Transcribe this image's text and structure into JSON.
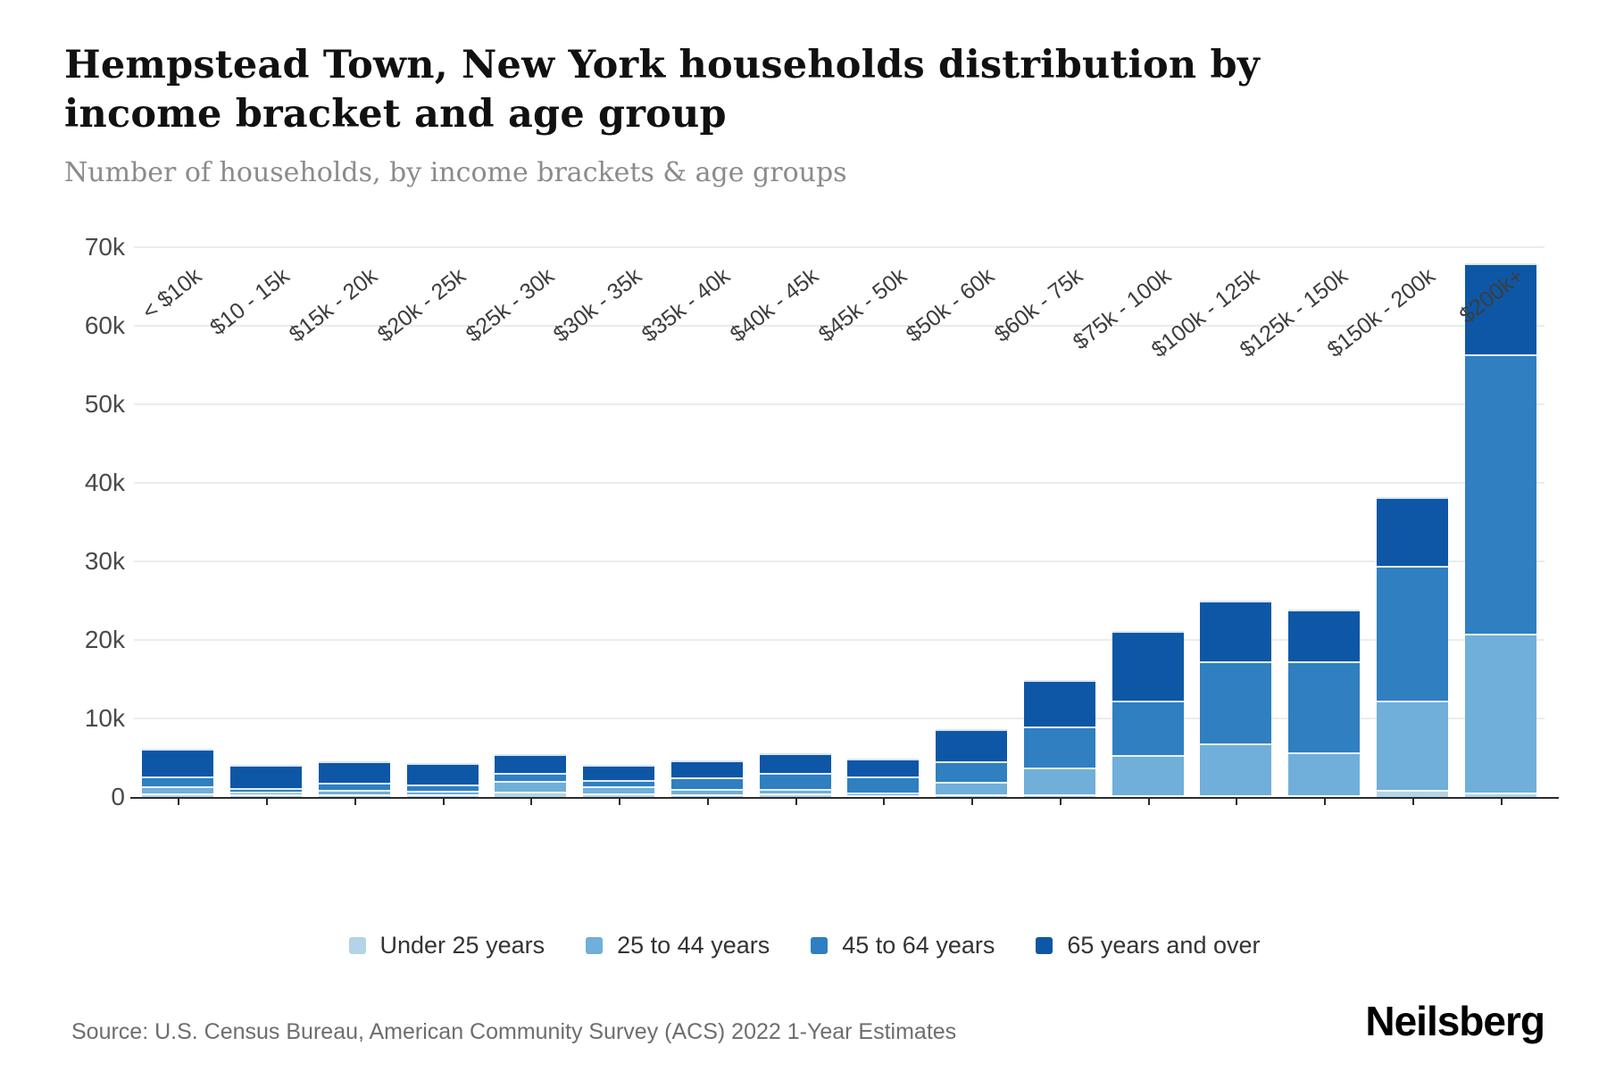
{
  "header": {
    "title": "Hempstead Town, New York households distribution by income bracket and age group",
    "subtitle": "Number of households, by income brackets & age groups"
  },
  "chart_data": {
    "type": "bar",
    "stacked": true,
    "title": "Hempstead Town, New York households distribution by income bracket and age group",
    "xlabel": "",
    "ylabel": "Number of households",
    "ylim": [
      0,
      70000
    ],
    "y_ticks": [
      {
        "value": 0,
        "label": "0"
      },
      {
        "value": 10000,
        "label": "10k"
      },
      {
        "value": 20000,
        "label": "20k"
      },
      {
        "value": 30000,
        "label": "30k"
      },
      {
        "value": 40000,
        "label": "40k"
      },
      {
        "value": 50000,
        "label": "50k"
      },
      {
        "value": 60000,
        "label": "60k"
      },
      {
        "value": 70000,
        "label": "70k"
      }
    ],
    "grid": "horizontal",
    "legend_position": "bottom",
    "categories": [
      "< $10k",
      "$10 - 15k",
      "$15k - 20k",
      "$20k - 25k",
      "$25k - 30k",
      "$30k - 35k",
      "$35k - 40k",
      "$40k - 45k",
      "$45k - 50k",
      "$50k - 60k",
      "$60k - 75k",
      "$75k - 100k",
      "$100k - 125k",
      "$125k - 150k",
      "$150k - 200k",
      "$200k+"
    ],
    "series": [
      {
        "name": "Under 25 years",
        "color": "#b3d3e8",
        "values": [
          450,
          300,
          350,
          350,
          700,
          450,
          350,
          500,
          250,
          300,
          400,
          250,
          200,
          250,
          900,
          600
        ]
      },
      {
        "name": "25 to 44 years",
        "color": "#6fafda",
        "values": [
          900,
          400,
          550,
          450,
          1350,
          900,
          650,
          550,
          350,
          1600,
          3400,
          5100,
          6600,
          5450,
          11400,
          20200
        ]
      },
      {
        "name": "45 to 64 years",
        "color": "#2f7fc1",
        "values": [
          1250,
          450,
          900,
          750,
          1000,
          800,
          1500,
          2000,
          2000,
          2600,
          5200,
          6900,
          10500,
          11600,
          17100,
          35600
        ]
      },
      {
        "name": "65 years and over",
        "color": "#0d57a6",
        "values": [
          3600,
          2900,
          2800,
          2800,
          2400,
          1900,
          2150,
          2500,
          2250,
          4200,
          5900,
          8900,
          7700,
          6600,
          8800,
          11600
        ]
      }
    ]
  },
  "footer": {
    "source": "Source: U.S. Census Bureau, American Community Survey (ACS) 2022 1-Year Estimates",
    "logo": "Neilsberg"
  }
}
